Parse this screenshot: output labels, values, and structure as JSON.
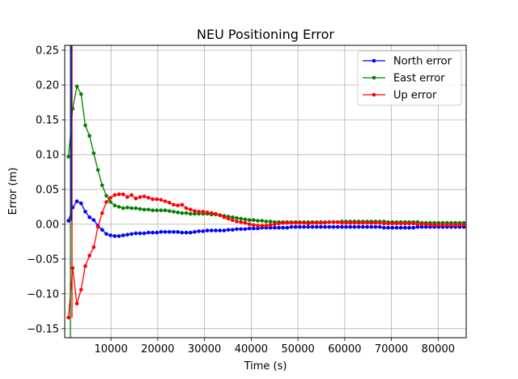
{
  "chart_data": {
    "type": "line",
    "title": "NEU Positioning Error",
    "xlabel": "Time (s)",
    "ylabel": "Error (m)",
    "xlim": [
      100,
      86000
    ],
    "ylim": [
      -0.163,
      0.257
    ],
    "xticks": [
      10000,
      20000,
      30000,
      40000,
      50000,
      60000,
      70000,
      80000
    ],
    "xtick_labels": [
      "10000",
      "20000",
      "30000",
      "40000",
      "50000",
      "60000",
      "70000",
      "80000"
    ],
    "yticks": [
      -0.15,
      -0.1,
      -0.05,
      0.0,
      0.05,
      0.1,
      0.15,
      0.2,
      0.25
    ],
    "ytick_labels": [
      "−0.15",
      "−0.10",
      "−0.05",
      "0.00",
      "0.05",
      "0.10",
      "0.15",
      "0.20",
      "0.25"
    ],
    "grid": true,
    "legend_position": "top-right",
    "series": [
      {
        "name": "North error",
        "color": "#0000ff",
        "x": [
          900,
          1800,
          2700,
          3600,
          4500,
          5400,
          6300,
          7200,
          8100,
          9000,
          9900,
          10800,
          11700,
          12600,
          13500,
          14400,
          15300,
          16200,
          17100,
          18000,
          18900,
          19800,
          20700,
          21600,
          22500,
          23400,
          24300,
          25200,
          26100,
          27000,
          27900,
          28800,
          29700,
          30600,
          31500,
          32400,
          33300,
          34200,
          35100,
          36000,
          36900,
          37800,
          38700,
          39600,
          40500,
          41400,
          42300,
          43200,
          44100,
          45000,
          45900,
          46800,
          47700,
          48600,
          49500,
          50400,
          51300,
          52200,
          53100,
          54000,
          54900,
          55800,
          56700,
          57600,
          58500,
          59400,
          60300,
          61200,
          62100,
          63000,
          63900,
          64800,
          65700,
          66600,
          67500,
          68400,
          69300,
          70200,
          71100,
          72000,
          72900,
          73800,
          74700,
          75600,
          76500,
          77400,
          78300,
          79200,
          80100,
          81000,
          81900,
          82800,
          83700,
          84600,
          85500
        ],
        "y": [
          0.005,
          0.024,
          0.033,
          0.03,
          0.018,
          0.01,
          0.006,
          -0.002,
          -0.008,
          -0.014,
          -0.016,
          -0.017,
          -0.017,
          -0.016,
          -0.015,
          -0.014,
          -0.013,
          -0.013,
          -0.013,
          -0.012,
          -0.012,
          -0.012,
          -0.011,
          -0.011,
          -0.011,
          -0.011,
          -0.011,
          -0.012,
          -0.012,
          -0.012,
          -0.011,
          -0.01,
          -0.01,
          -0.009,
          -0.009,
          -0.009,
          -0.009,
          -0.009,
          -0.008,
          -0.008,
          -0.007,
          -0.007,
          -0.007,
          -0.006,
          -0.006,
          -0.006,
          -0.005,
          -0.005,
          -0.005,
          -0.005,
          -0.005,
          -0.005,
          -0.005,
          -0.004,
          -0.004,
          -0.004,
          -0.004,
          -0.004,
          -0.004,
          -0.004,
          -0.004,
          -0.004,
          -0.004,
          -0.004,
          -0.004,
          -0.004,
          -0.004,
          -0.004,
          -0.004,
          -0.004,
          -0.004,
          -0.004,
          -0.004,
          -0.004,
          -0.004,
          -0.005,
          -0.005,
          -0.005,
          -0.005,
          -0.005,
          -0.005,
          -0.005,
          -0.005,
          -0.004,
          -0.004,
          -0.004,
          -0.004,
          -0.004,
          -0.004,
          -0.004,
          -0.004,
          -0.004,
          -0.004,
          -0.004,
          -0.004
        ]
      },
      {
        "name": "East error",
        "color": "#008000",
        "x": [
          900,
          1800,
          2700,
          3600,
          4500,
          5400,
          6300,
          7200,
          8100,
          9000,
          9900,
          10800,
          11700,
          12600,
          13500,
          14400,
          15300,
          16200,
          17100,
          18000,
          18900,
          19800,
          20700,
          21600,
          22500,
          23400,
          24300,
          25200,
          26100,
          27000,
          27900,
          28800,
          29700,
          30600,
          31500,
          32400,
          33300,
          34200,
          35100,
          36000,
          36900,
          37800,
          38700,
          39600,
          40500,
          41400,
          42300,
          43200,
          44100,
          45000,
          45900,
          46800,
          47700,
          48600,
          49500,
          50400,
          51300,
          52200,
          53100,
          54000,
          54900,
          55800,
          56700,
          57600,
          58500,
          59400,
          60300,
          61200,
          62100,
          63000,
          63900,
          64800,
          65700,
          66600,
          67500,
          68400,
          69300,
          70200,
          71100,
          72000,
          72900,
          73800,
          74700,
          75600,
          76500,
          77400,
          78300,
          79200,
          80100,
          81000,
          81900,
          82800,
          83700,
          84600,
          85500
        ],
        "y": [
          0.097,
          0.166,
          0.198,
          0.187,
          0.142,
          0.127,
          0.102,
          0.078,
          0.056,
          0.041,
          0.032,
          0.027,
          0.025,
          0.023,
          0.024,
          0.023,
          0.023,
          0.022,
          0.021,
          0.021,
          0.02,
          0.02,
          0.02,
          0.02,
          0.019,
          0.018,
          0.017,
          0.016,
          0.016,
          0.015,
          0.015,
          0.015,
          0.015,
          0.015,
          0.014,
          0.014,
          0.013,
          0.012,
          0.011,
          0.01,
          0.009,
          0.008,
          0.007,
          0.006,
          0.006,
          0.005,
          0.005,
          0.004,
          0.004,
          0.003,
          0.003,
          0.003,
          0.003,
          0.003,
          0.003,
          0.003,
          0.003,
          0.003,
          0.003,
          0.003,
          0.003,
          0.003,
          0.003,
          0.003,
          0.003,
          0.004,
          0.004,
          0.004,
          0.004,
          0.004,
          0.004,
          0.004,
          0.004,
          0.004,
          0.004,
          0.004,
          0.003,
          0.003,
          0.003,
          0.003,
          0.003,
          0.003,
          0.003,
          0.003,
          0.002,
          0.002,
          0.002,
          0.002,
          0.002,
          0.002,
          0.002,
          0.002,
          0.002,
          0.002,
          0.002
        ]
      },
      {
        "name": "Up error",
        "color": "#ff0000",
        "x": [
          900,
          1800,
          2700,
          3600,
          4500,
          5400,
          6300,
          7200,
          8100,
          9000,
          9900,
          10800,
          11700,
          12600,
          13500,
          14400,
          15300,
          16200,
          17100,
          18000,
          18900,
          19800,
          20700,
          21600,
          22500,
          23400,
          24300,
          25200,
          26100,
          27000,
          27900,
          28800,
          29700,
          30600,
          31500,
          32400,
          33300,
          34200,
          35100,
          36000,
          36900,
          37800,
          38700,
          39600,
          40500,
          41400,
          42300,
          43200,
          44100,
          45000,
          45900,
          46800,
          47700,
          48600,
          49500,
          50400,
          51300,
          52200,
          53100,
          54000,
          54900,
          55800,
          56700,
          57600,
          58500,
          59400,
          60300,
          61200,
          62100,
          63000,
          63900,
          64800,
          65700,
          66600,
          67500,
          68400,
          69300,
          70200,
          71100,
          72000,
          72900,
          73800,
          74700,
          75600,
          76500,
          77400,
          78300,
          79200,
          80100,
          81000,
          81900,
          82800,
          83700,
          84600,
          85500
        ],
        "y": [
          -0.134,
          -0.063,
          -0.114,
          -0.094,
          -0.06,
          -0.045,
          -0.033,
          -0.004,
          0.016,
          0.032,
          0.038,
          0.042,
          0.043,
          0.043,
          0.039,
          0.042,
          0.037,
          0.039,
          0.04,
          0.038,
          0.036,
          0.036,
          0.035,
          0.033,
          0.031,
          0.028,
          0.027,
          0.028,
          0.023,
          0.021,
          0.019,
          0.018,
          0.018,
          0.017,
          0.016,
          0.015,
          0.013,
          0.01,
          0.008,
          0.006,
          0.004,
          0.003,
          0.002,
          0.0,
          -0.001,
          -0.002,
          -0.002,
          -0.002,
          -0.001,
          0.0,
          0.001,
          0.002,
          0.002,
          0.002,
          0.002,
          0.002,
          0.002,
          0.001,
          0.002,
          0.002,
          0.002,
          0.002,
          0.003,
          0.003,
          0.003,
          0.002,
          0.002,
          0.002,
          0.002,
          0.002,
          0.002,
          0.002,
          0.002,
          0.002,
          0.002,
          0.001,
          0.001,
          0.001,
          0.001,
          0.001,
          0.001,
          0.001,
          0.001,
          0.0,
          0.0,
          0.0,
          -0.001,
          -0.001,
          -0.001,
          -0.001,
          -0.001,
          -0.001,
          -0.001,
          -0.001,
          -0.001
        ]
      }
    ]
  }
}
